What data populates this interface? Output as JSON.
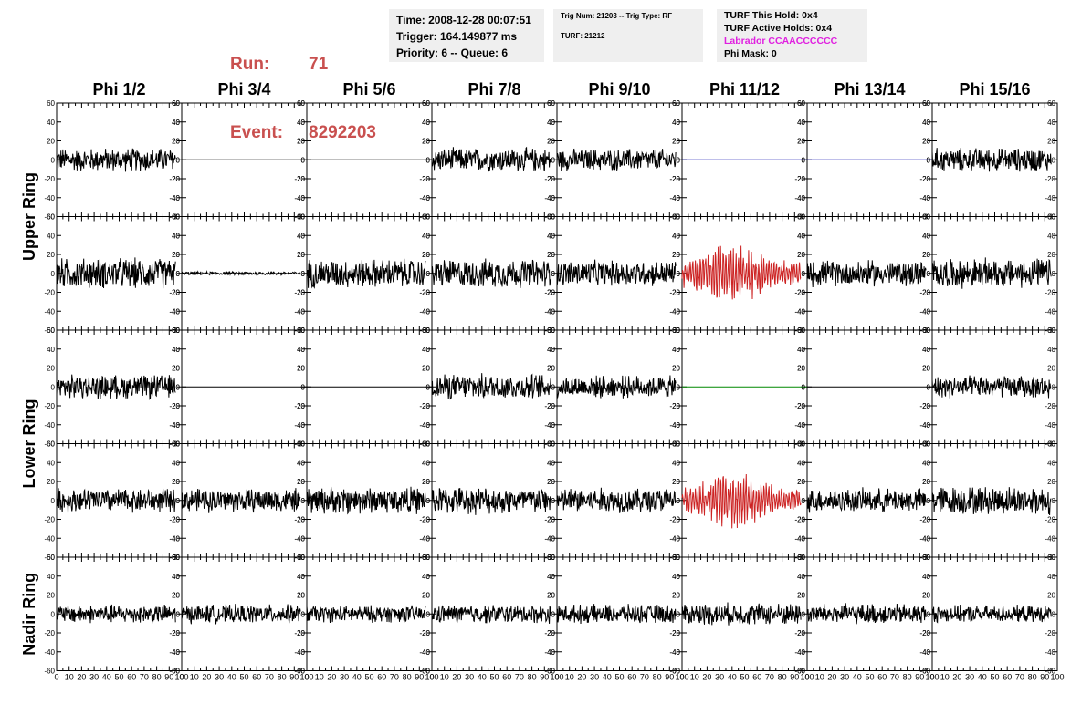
{
  "header": {
    "run_label": "Run:",
    "run_value": "71",
    "event_label": "Event:",
    "event_value": "8292203",
    "time_line": "Time: 2008-12-28 00:07:51",
    "trigger_line": "Trigger: 164.149877 ms",
    "priority_line": "Priority: 6 -- Queue: 6",
    "trig_line": "Trig Num: 21203 -- Trig Type: RF",
    "turf_line": "TURF: 21212",
    "turf_this_hold": "TURF This Hold: 0x4",
    "turf_active_holds": "TURF Active Holds: 0x4",
    "labrador": "Labrador CCAACCCCCC",
    "phi_mask": "Phi Mask: 0",
    "labrador_color": "#e020e0",
    "run_color": "#c9504f"
  },
  "chart_data": {
    "type": "line",
    "columns": [
      "Phi 1/2",
      "Phi 3/4",
      "Phi 5/6",
      "Phi 7/8",
      "Phi 9/10",
      "Phi 11/12",
      "Phi 13/14",
      "Phi 15/16"
    ],
    "ring_labels": [
      "Upper Ring",
      "Lower Ring",
      "Nadir Ring"
    ],
    "xlim": [
      0,
      100
    ],
    "ylim": [
      -60,
      60
    ],
    "x_tick_labels": [
      "0",
      "10",
      "20",
      "30",
      "40",
      "50",
      "60",
      "70",
      "80",
      "90",
      "100"
    ],
    "y_tick_labels": [
      "-60",
      "-40",
      "-20",
      "0",
      "20",
      "40",
      "60"
    ],
    "x_data_range": [
      0,
      95
    ],
    "panels": [
      [
        {
          "status": "noise",
          "amplitude": 14,
          "color": "#000000"
        },
        {
          "status": "flat",
          "amplitude": 0,
          "color": "#000000"
        },
        {
          "status": "flat",
          "amplitude": 0,
          "color": "#000000"
        },
        {
          "status": "noise",
          "amplitude": 14,
          "color": "#000000"
        },
        {
          "status": "noise",
          "amplitude": 13,
          "color": "#000000"
        },
        {
          "status": "flat",
          "amplitude": 0,
          "color": "#0000aa"
        },
        {
          "status": "flat",
          "amplitude": 0,
          "color": "#0000aa"
        },
        {
          "status": "noise",
          "amplitude": 14,
          "color": "#000000"
        }
      ],
      [
        {
          "status": "noise",
          "amplitude": 18,
          "color": "#000000"
        },
        {
          "status": "noise",
          "amplitude": 2,
          "color": "#000000"
        },
        {
          "status": "noise",
          "amplitude": 17,
          "color": "#000000"
        },
        {
          "status": "noise",
          "amplitude": 17,
          "color": "#000000"
        },
        {
          "status": "noise",
          "amplitude": 15,
          "color": "#000000"
        },
        {
          "status": "pulse",
          "amplitude": 30,
          "color": "#cc2222"
        },
        {
          "status": "noise",
          "amplitude": 15,
          "color": "#000000"
        },
        {
          "status": "noise",
          "amplitude": 17,
          "color": "#000000"
        }
      ],
      [
        {
          "status": "noise",
          "amplitude": 14,
          "color": "#000000"
        },
        {
          "status": "flat",
          "amplitude": 0,
          "color": "#000000"
        },
        {
          "status": "flat",
          "amplitude": 0,
          "color": "#000000"
        },
        {
          "status": "noise",
          "amplitude": 15,
          "color": "#000000"
        },
        {
          "status": "noise",
          "amplitude": 13,
          "color": "#000000"
        },
        {
          "status": "flat",
          "amplitude": 0,
          "color": "#008800"
        },
        {
          "status": "flat",
          "amplitude": 0,
          "color": "#000000"
        },
        {
          "status": "noise",
          "amplitude": 13,
          "color": "#000000"
        }
      ],
      [
        {
          "status": "noise",
          "amplitude": 14,
          "color": "#000000"
        },
        {
          "status": "noise",
          "amplitude": 14,
          "color": "#000000"
        },
        {
          "status": "noise",
          "amplitude": 16,
          "color": "#000000"
        },
        {
          "status": "noise",
          "amplitude": 16,
          "color": "#000000"
        },
        {
          "status": "noise",
          "amplitude": 15,
          "color": "#000000"
        },
        {
          "status": "pulse",
          "amplitude": 28,
          "color": "#cc2222"
        },
        {
          "status": "noise",
          "amplitude": 14,
          "color": "#000000"
        },
        {
          "status": "noise",
          "amplitude": 17,
          "color": "#000000"
        }
      ],
      [
        {
          "status": "noise",
          "amplitude": 11,
          "color": "#000000"
        },
        {
          "status": "noise",
          "amplitude": 11,
          "color": "#000000"
        },
        {
          "status": "noise",
          "amplitude": 10,
          "color": "#000000"
        },
        {
          "status": "noise",
          "amplitude": 11,
          "color": "#000000"
        },
        {
          "status": "noise",
          "amplitude": 11,
          "color": "#000000"
        },
        {
          "status": "noise",
          "amplitude": 13,
          "color": "#000000"
        },
        {
          "status": "noise",
          "amplitude": 12,
          "color": "#000000"
        },
        {
          "status": "noise",
          "amplitude": 10,
          "color": "#000000"
        }
      ]
    ]
  }
}
